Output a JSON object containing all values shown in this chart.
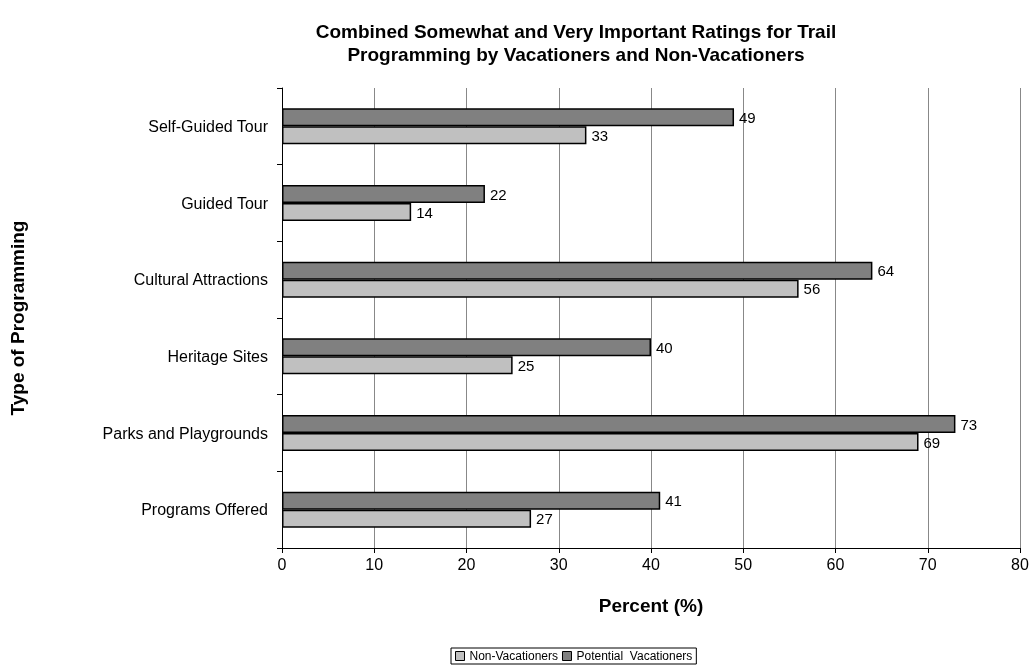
{
  "chart_data": {
    "type": "bar",
    "orientation": "horizontal",
    "title": "Combined Somewhat and Very Important Ratings for Trail\nProgramming by Vacationers and Non-Vacationers",
    "xlabel": "Percent (%)",
    "ylabel": "Type of Programming",
    "categories": [
      "Self-Guided Tour",
      "Guided Tour",
      "Cultural Attractions",
      "Heritage Sites",
      "Parks and Playgrounds",
      "Programs Offered"
    ],
    "series": [
      {
        "name": "Non-Vacationers",
        "color": "#c0c0c0",
        "values": [
          33,
          14,
          56,
          25,
          69,
          27
        ]
      },
      {
        "name": "Potential  Vacationers",
        "color": "#808080",
        "values": [
          49,
          22,
          64,
          40,
          73,
          41
        ]
      }
    ],
    "xlim": [
      0,
      80
    ],
    "xticks": [
      0,
      10,
      20,
      30,
      40,
      50,
      60,
      70,
      80
    ],
    "grid": "x",
    "legend": "bottom",
    "data_labels": true
  }
}
